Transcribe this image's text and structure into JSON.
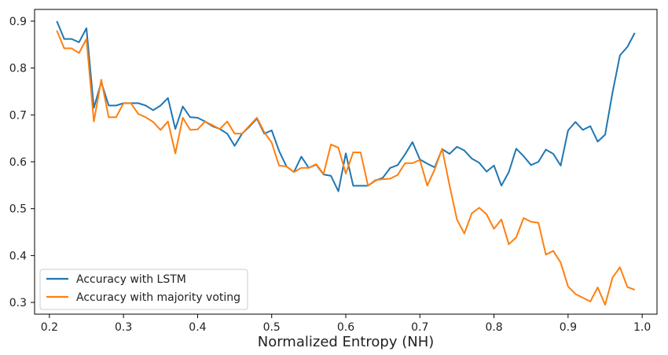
{
  "chart_data": {
    "type": "line",
    "title": "",
    "xlabel": "Normalized Entropy (NH)",
    "ylabel": "",
    "xlim": [
      0.18,
      1.02
    ],
    "ylim": [
      0.275,
      0.925
    ],
    "xticks": [
      0.2,
      0.3,
      0.4,
      0.5,
      0.6,
      0.7,
      0.8,
      0.9,
      1.0
    ],
    "xtick_labels": [
      "0.2",
      "0.3",
      "0.4",
      "0.5",
      "0.6",
      "0.7",
      "0.8",
      "0.9",
      "1.0"
    ],
    "yticks": [
      0.3,
      0.4,
      0.5,
      0.6,
      0.7,
      0.8,
      0.9
    ],
    "ytick_labels": [
      "0.3",
      "0.4",
      "0.5",
      "0.6",
      "0.7",
      "0.8",
      "0.9"
    ],
    "grid": false,
    "legend_position": "bottom-left",
    "x": [
      0.21,
      0.22,
      0.23,
      0.24,
      0.25,
      0.26,
      0.27,
      0.28,
      0.29,
      0.3,
      0.31,
      0.32,
      0.33,
      0.34,
      0.35,
      0.36,
      0.37,
      0.38,
      0.39,
      0.4,
      0.41,
      0.42,
      0.43,
      0.44,
      0.45,
      0.46,
      0.47,
      0.48,
      0.49,
      0.5,
      0.51,
      0.52,
      0.53,
      0.54,
      0.55,
      0.56,
      0.57,
      0.58,
      0.59,
      0.6,
      0.61,
      0.62,
      0.63,
      0.64,
      0.65,
      0.66,
      0.67,
      0.68,
      0.69,
      0.7,
      0.71,
      0.72,
      0.73,
      0.74,
      0.75,
      0.76,
      0.77,
      0.78,
      0.79,
      0.8,
      0.81,
      0.82,
      0.83,
      0.84,
      0.85,
      0.86,
      0.87,
      0.88,
      0.89,
      0.9,
      0.91,
      0.92,
      0.93,
      0.94,
      0.95,
      0.96,
      0.97,
      0.98,
      0.99
    ],
    "series": [
      {
        "name": "Accuracy with LSTM",
        "color": "#1f77b4",
        "values": [
          0.9,
          0.862,
          0.862,
          0.855,
          0.885,
          0.715,
          0.77,
          0.72,
          0.72,
          0.725,
          0.725,
          0.725,
          0.72,
          0.71,
          0.72,
          0.736,
          0.67,
          0.718,
          0.695,
          0.694,
          0.686,
          0.676,
          0.67,
          0.66,
          0.634,
          0.66,
          0.675,
          0.692,
          0.66,
          0.667,
          0.623,
          0.59,
          0.578,
          0.611,
          0.587,
          0.594,
          0.573,
          0.57,
          0.537,
          0.618,
          0.549,
          0.549,
          0.549,
          0.56,
          0.566,
          0.587,
          0.593,
          0.616,
          0.642,
          0.605,
          0.596,
          0.588,
          0.627,
          0.617,
          0.632,
          0.624,
          0.607,
          0.598,
          0.579,
          0.592,
          0.549,
          0.578,
          0.628,
          0.612,
          0.593,
          0.6,
          0.626,
          0.617,
          0.592,
          0.667,
          0.685,
          0.668,
          0.676,
          0.643,
          0.658,
          0.748,
          0.827,
          0.845,
          0.875
        ]
      },
      {
        "name": "Accuracy with majority voting",
        "color": "#ff7f0e",
        "values": [
          0.88,
          0.842,
          0.842,
          0.832,
          0.862,
          0.686,
          0.775,
          0.695,
          0.695,
          0.725,
          0.725,
          0.702,
          0.695,
          0.685,
          0.668,
          0.686,
          0.618,
          0.694,
          0.668,
          0.669,
          0.686,
          0.678,
          0.67,
          0.686,
          0.66,
          0.66,
          0.677,
          0.694,
          0.663,
          0.641,
          0.592,
          0.59,
          0.578,
          0.587,
          0.587,
          0.595,
          0.574,
          0.637,
          0.63,
          0.575,
          0.62,
          0.62,
          0.549,
          0.561,
          0.563,
          0.564,
          0.572,
          0.597,
          0.597,
          0.604,
          0.549,
          0.584,
          0.628,
          0.55,
          0.477,
          0.447,
          0.49,
          0.502,
          0.488,
          0.457,
          0.477,
          0.424,
          0.439,
          0.48,
          0.472,
          0.47,
          0.402,
          0.41,
          0.385,
          0.334,
          0.318,
          0.31,
          0.302,
          0.332,
          0.295,
          0.353,
          0.375,
          0.333,
          0.327
        ]
      }
    ]
  }
}
